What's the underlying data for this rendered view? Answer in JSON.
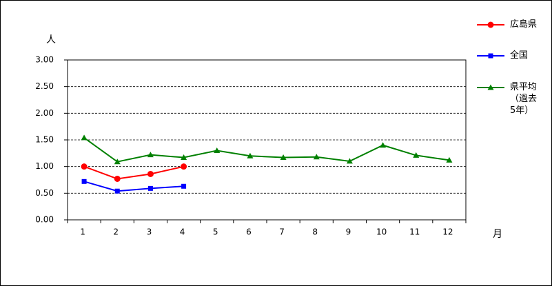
{
  "chart_data": {
    "type": "line",
    "y_label": "人",
    "x_label": "月",
    "categories": [
      "1",
      "2",
      "3",
      "4",
      "5",
      "6",
      "7",
      "8",
      "9",
      "10",
      "11",
      "12"
    ],
    "series": [
      {
        "name": "広島県",
        "color": "#ff0000",
        "marker": "circle",
        "values": [
          1.0,
          0.77,
          0.86,
          1.0,
          null,
          null,
          null,
          null,
          null,
          null,
          null,
          null
        ]
      },
      {
        "name": "全国",
        "color": "#0000ff",
        "marker": "square",
        "values": [
          0.72,
          0.54,
          0.59,
          0.63,
          null,
          null,
          null,
          null,
          null,
          null,
          null,
          null
        ]
      },
      {
        "name": "県平均（過去5年）",
        "color": "#008000",
        "marker": "triangle",
        "values": [
          1.54,
          1.09,
          1.22,
          1.17,
          1.3,
          1.2,
          1.17,
          1.18,
          1.1,
          1.4,
          1.21,
          1.12
        ]
      }
    ],
    "ylim": [
      0,
      3
    ],
    "yticks": [
      {
        "value": 0,
        "label": "0.00"
      },
      {
        "value": 0.5,
        "label": "0.50"
      },
      {
        "value": 1,
        "label": "1.00"
      },
      {
        "value": 1.5,
        "label": "1.50"
      },
      {
        "value": 2,
        "label": "2.00"
      },
      {
        "value": 2.5,
        "label": "2.50"
      },
      {
        "value": 3,
        "label": "3.00"
      }
    ],
    "grid": true,
    "legend": "right"
  }
}
